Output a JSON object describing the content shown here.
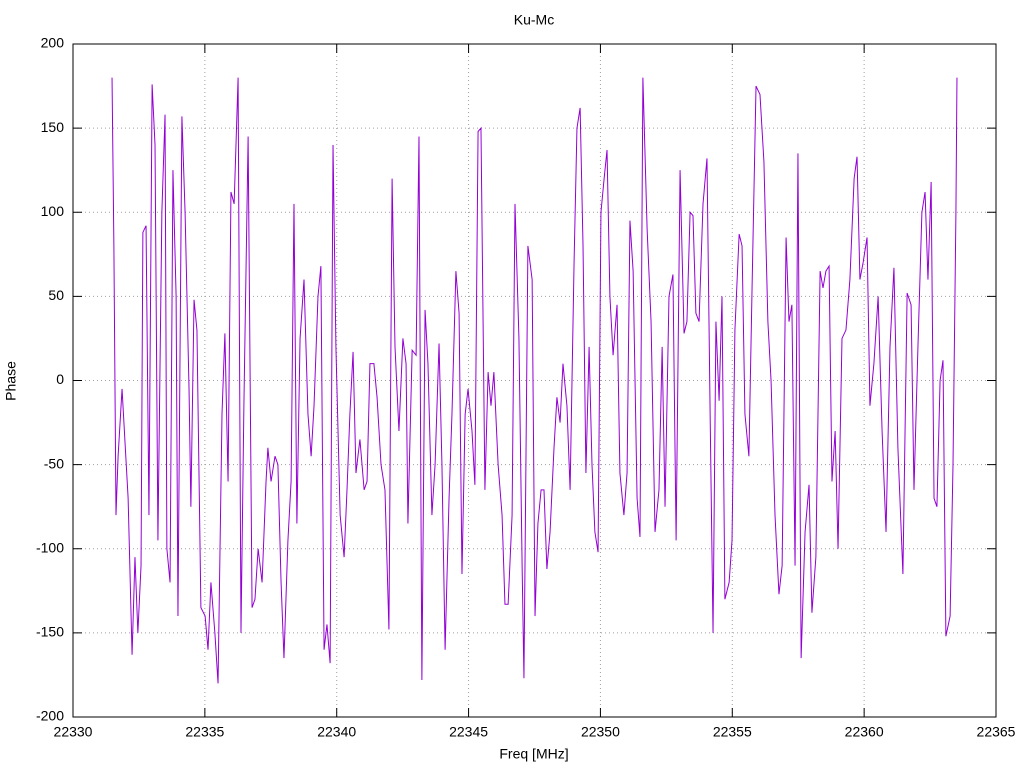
{
  "chart_data": {
    "type": "line",
    "title": "Ku-Mc",
    "xlabel": "Freq [MHz]",
    "ylabel": "Phase",
    "color": "#9400d3",
    "grid": true,
    "xlim": [
      22330,
      22365
    ],
    "xticks": [
      22330,
      22335,
      22340,
      22345,
      22350,
      22355,
      22360,
      22365
    ],
    "ylim": [
      -200,
      200
    ],
    "yticks": [
      -200,
      -150,
      -100,
      -50,
      0,
      50,
      100,
      150,
      200
    ],
    "x": [
      22331.48,
      22331.55,
      22331.63,
      22331.71,
      22331.86,
      22332.09,
      22332.24,
      22332.35,
      22332.46,
      22332.58,
      22332.65,
      22332.77,
      22332.88,
      22333.0,
      22333.11,
      22333.22,
      22333.37,
      22333.49,
      22333.56,
      22333.68,
      22333.79,
      22333.91,
      22333.98,
      22334.13,
      22334.25,
      22334.4,
      22334.47,
      22334.59,
      22334.7,
      22334.85,
      22335.01,
      22335.12,
      22335.23,
      22335.38,
      22335.5,
      22335.65,
      22335.76,
      22335.88,
      22335.99,
      22336.11,
      22336.26,
      22336.37,
      22336.48,
      22336.64,
      22336.79,
      22336.9,
      22337.02,
      22337.17,
      22337.32,
      22337.39,
      22337.51,
      22337.66,
      22337.77,
      22337.89,
      22338.0,
      22338.15,
      22338.27,
      22338.38,
      22338.49,
      22338.61,
      22338.76,
      22338.91,
      22339.03,
      22339.14,
      22339.29,
      22339.4,
      22339.52,
      22339.63,
      22339.75,
      22339.86,
      22339.97,
      22340.13,
      22340.28,
      22340.39,
      22340.5,
      22340.62,
      22340.73,
      22340.88,
      22341.04,
      22341.15,
      22341.26,
      22341.41,
      22341.53,
      22341.68,
      22341.83,
      22341.98,
      22342.1,
      22342.21,
      22342.36,
      22342.51,
      22342.63,
      22342.7,
      22342.86,
      22343.01,
      22343.12,
      22343.23,
      22343.35,
      22343.46,
      22343.61,
      22343.73,
      22343.88,
      22343.99,
      22344.11,
      22344.26,
      22344.37,
      22344.52,
      22344.64,
      22344.75,
      22344.87,
      22344.98,
      22345.13,
      22345.24,
      22345.36,
      22345.47,
      22345.62,
      22345.74,
      22345.85,
      22345.96,
      22346.12,
      22346.27,
      22346.38,
      22346.5,
      22346.65,
      22346.76,
      22346.91,
      22347.03,
      22347.1,
      22347.25,
      22347.41,
      22347.52,
      22347.63,
      22347.75,
      22347.86,
      22347.97,
      22348.09,
      22348.24,
      22348.35,
      22348.47,
      22348.58,
      22348.73,
      22348.85,
      22349.0,
      22349.11,
      22349.23,
      22349.34,
      22349.45,
      22349.57,
      22349.68,
      22349.79,
      22349.91,
      22350.02,
      22350.14,
      22350.25,
      22350.36,
      22350.48,
      22350.63,
      22350.74,
      22350.89,
      22351.01,
      22351.12,
      22351.24,
      22351.39,
      22351.5,
      22351.61,
      22351.77,
      22351.92,
      22352.07,
      22352.22,
      22352.34,
      22352.45,
      22352.6,
      22352.75,
      22352.87,
      22353.02,
      22353.17,
      22353.28,
      22353.4,
      22353.51,
      22353.62,
      22353.74,
      22353.89,
      22354.04,
      22354.16,
      22354.27,
      22354.38,
      22354.5,
      22354.61,
      22354.72,
      22354.88,
      22354.99,
      22355.1,
      22355.26,
      22355.37,
      22355.48,
      22355.63,
      22355.75,
      22355.9,
      22356.05,
      22356.2,
      22356.35,
      22356.47,
      22356.62,
      22356.77,
      22356.89,
      22357.04,
      22357.15,
      22357.26,
      22357.38,
      22357.49,
      22357.61,
      22357.76,
      22357.91,
      22358.02,
      22358.17,
      22358.33,
      22358.44,
      22358.55,
      22358.67,
      22358.78,
      22358.9,
      22359.01,
      22359.16,
      22359.31,
      22359.46,
      22359.62,
      22359.73,
      22359.84,
      22359.96,
      22360.11,
      22360.22,
      22360.37,
      22360.53,
      22360.68,
      22360.83,
      22360.98,
      22361.13,
      22361.28,
      22361.47,
      22361.63,
      22361.78,
      22361.89,
      22362.04,
      22362.19,
      22362.31,
      22362.42,
      22362.54,
      22362.65,
      22362.76,
      22362.88,
      22362.99,
      22363.1,
      22363.26,
      22363.37,
      22363.48,
      22363.52
    ],
    "values": [
      180,
      80,
      -80,
      -45,
      -5,
      -70,
      -163,
      -105,
      -150,
      -110,
      88,
      92,
      -80,
      176,
      140,
      -95,
      100,
      158,
      -100,
      -120,
      125,
      50,
      -140,
      157,
      100,
      -5,
      -75,
      48,
      30,
      -135,
      -140,
      -160,
      -120,
      -150,
      -180,
      -20,
      28,
      -60,
      112,
      105,
      180,
      -150,
      -15,
      145,
      -135,
      -130,
      -100,
      -120,
      -60,
      -40,
      -60,
      -45,
      -50,
      -120,
      -165,
      -95,
      -60,
      105,
      -85,
      25,
      60,
      -20,
      -45,
      -15,
      50,
      68,
      -160,
      -145,
      -168,
      140,
      20,
      -80,
      -105,
      -65,
      -20,
      17,
      -55,
      -35,
      -65,
      -60,
      10,
      10,
      -10,
      -50,
      -65,
      -148,
      120,
      20,
      -30,
      25,
      10,
      -85,
      18,
      15,
      145,
      -178,
      42,
      10,
      -80,
      -50,
      22,
      -50,
      -160,
      -70,
      -20,
      65,
      40,
      -115,
      -20,
      -5,
      -30,
      -62,
      148,
      150,
      -65,
      5,
      -15,
      5,
      -50,
      -80,
      -133,
      -133,
      -80,
      105,
      25,
      -110,
      -177,
      80,
      60,
      -140,
      -85,
      -65,
      -65,
      -112,
      -90,
      -40,
      -10,
      -25,
      10,
      -15,
      -65,
      70,
      150,
      162,
      80,
      -55,
      20,
      -50,
      -90,
      -102,
      100,
      120,
      137,
      50,
      15,
      45,
      -55,
      -80,
      -55,
      95,
      65,
      -70,
      -93,
      180,
      90,
      35,
      -90,
      -65,
      20,
      -75,
      50,
      63,
      -95,
      125,
      28,
      35,
      100,
      98,
      40,
      35,
      105,
      132,
      -20,
      -150,
      35,
      -12,
      50,
      -130,
      -120,
      -95,
      30,
      87,
      80,
      -20,
      -45,
      55,
      175,
      170,
      130,
      35,
      0,
      -80,
      -127,
      -110,
      85,
      35,
      45,
      -110,
      135,
      -165,
      -90,
      -62,
      -138,
      -105,
      65,
      55,
      65,
      68,
      -60,
      -30,
      -100,
      25,
      30,
      60,
      120,
      133,
      60,
      70,
      85,
      -15,
      10,
      50,
      -30,
      -90,
      20,
      67,
      -40,
      -115,
      52,
      45,
      -65,
      20,
      100,
      112,
      60,
      118,
      -70,
      -75,
      0,
      12,
      -152,
      -140,
      -50,
      100,
      180
    ]
  }
}
